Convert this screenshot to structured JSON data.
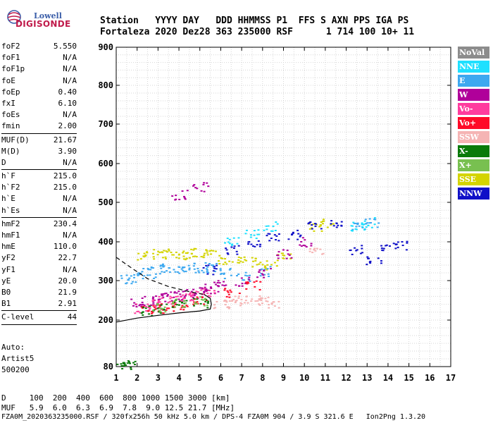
{
  "logo": {
    "line1": "Lowell",
    "line2": "DIGISONDE"
  },
  "header": {
    "keys": "Station   YYYY DAY   DDD HHMMSS P1  FFS S AXN PPS IGA PS",
    "values": "Fortaleza 2020 Dez28 363 235000 RSF      1 714 100 10+ 11"
  },
  "params": [
    {
      "k": "foF2",
      "v": "5.550"
    },
    {
      "k": "foF1",
      "v": "N/A"
    },
    {
      "k": "foF1p",
      "v": "N/A"
    },
    {
      "k": "foE",
      "v": "N/A"
    },
    {
      "k": "foEp",
      "v": "0.40"
    },
    {
      "k": "fxI",
      "v": "6.10"
    },
    {
      "k": "foEs",
      "v": "N/A"
    },
    {
      "k": "fmin",
      "v": "2.00"
    },
    {
      "sep": true
    },
    {
      "k": "MUF(D)",
      "v": "21.67"
    },
    {
      "k": "M(D)",
      "v": "3.90"
    },
    {
      "k": "D",
      "v": "N/A"
    },
    {
      "sep": true
    },
    {
      "k": "h`F",
      "v": "215.0"
    },
    {
      "k": "h`F2",
      "v": "215.0"
    },
    {
      "k": "h`E",
      "v": "N/A"
    },
    {
      "k": "h`Es",
      "v": "N/A"
    },
    {
      "sep": true
    },
    {
      "k": "hmF2",
      "v": "230.4"
    },
    {
      "k": "hmF1",
      "v": "N/A"
    },
    {
      "k": "hmE",
      "v": "110.0"
    },
    {
      "k": "yF2",
      "v": "22.7"
    },
    {
      "k": "yF1",
      "v": "N/A"
    },
    {
      "k": "yE",
      "v": "20.0"
    },
    {
      "k": "B0",
      "v": "21.9"
    },
    {
      "k": "B1",
      "v": "2.91"
    },
    {
      "sep": true
    },
    {
      "k": "C-level",
      "v": "44"
    },
    {
      "sep": true
    }
  ],
  "autoscaling": {
    "line1": "Auto:",
    "line2": "Artist5",
    "line3": "500200"
  },
  "legend": [
    {
      "label": "NoVal",
      "color": "#8c8c8c"
    },
    {
      "label": "NNE",
      "color": "#1fe0ff"
    },
    {
      "label": "E",
      "color": "#3da8f0"
    },
    {
      "label": "W",
      "color": "#b0009a"
    },
    {
      "label": "Vo-",
      "color": "#ff3c9e"
    },
    {
      "label": "Vo+",
      "color": "#ff0a28"
    },
    {
      "label": "SSW",
      "color": "#f5b4b4"
    },
    {
      "label": "X-",
      "color": "#0a7a0a"
    },
    {
      "label": "X+",
      "color": "#78c050"
    },
    {
      "label": "SSE",
      "color": "#d4d400"
    },
    {
      "label": "NNW",
      "color": "#1010c8"
    }
  ],
  "chart_data": {
    "type": "scatter",
    "xlabel": "",
    "ylabel": "",
    "xlim": [
      1,
      17
    ],
    "ylim": [
      80,
      900
    ],
    "xticks": [
      1,
      2,
      3,
      4,
      5,
      6,
      7,
      8,
      9,
      10,
      11,
      12,
      13,
      14,
      15,
      16,
      17
    ],
    "yticks": [
      80,
      200,
      300,
      400,
      500,
      600,
      700,
      800,
      900
    ],
    "grid": true,
    "series": [
      {
        "name": "SSE",
        "points": [
          [
            2.3,
            365
          ],
          [
            3,
            370
          ],
          [
            3.5,
            372
          ],
          [
            4,
            368
          ],
          [
            4.5,
            370
          ],
          [
            5,
            372
          ],
          [
            5.5,
            368
          ],
          [
            6.2,
            355
          ],
          [
            6.8,
            360
          ],
          [
            7.5,
            350
          ],
          [
            8.3,
            340
          ],
          [
            9,
            360
          ],
          [
            10.5,
            440
          ],
          [
            11,
            450
          ]
        ]
      },
      {
        "name": "E",
        "points": [
          [
            1.5,
            305
          ],
          [
            2,
            310
          ],
          [
            2.5,
            320
          ],
          [
            3,
            330
          ],
          [
            3.5,
            335
          ],
          [
            4,
            330
          ],
          [
            4.5,
            335
          ],
          [
            5,
            330
          ],
          [
            5.5,
            335
          ],
          [
            6.3,
            320
          ],
          [
            7,
            310
          ],
          [
            8,
            325
          ],
          [
            12.6,
            440
          ],
          [
            13.2,
            450
          ]
        ]
      },
      {
        "name": "W",
        "points": [
          [
            2,
            245
          ],
          [
            2.5,
            250
          ],
          [
            3,
            255
          ],
          [
            3.5,
            260
          ],
          [
            4,
            265
          ],
          [
            4.5,
            270
          ],
          [
            5,
            275
          ],
          [
            5.5,
            280
          ],
          [
            6,
            290
          ],
          [
            7,
            300
          ],
          [
            8,
            320
          ],
          [
            9,
            370
          ],
          [
            10,
            400
          ],
          [
            4,
            520
          ],
          [
            5,
            540
          ]
        ]
      },
      {
        "name": "Vo-",
        "points": [
          [
            2.2,
            230
          ],
          [
            2.8,
            240
          ],
          [
            3.3,
            250
          ],
          [
            3.8,
            255
          ],
          [
            4.3,
            258
          ],
          [
            4.8,
            262
          ],
          [
            5.3,
            270
          ]
        ]
      },
      {
        "name": "Vo+",
        "points": [
          [
            2.5,
            225
          ],
          [
            3,
            230
          ],
          [
            3.5,
            235
          ],
          [
            4,
            240
          ],
          [
            5,
            250
          ],
          [
            6.5,
            270
          ],
          [
            7.5,
            290
          ]
        ]
      },
      {
        "name": "SSW",
        "points": [
          [
            6,
            240
          ],
          [
            6.5,
            245
          ],
          [
            7,
            250
          ],
          [
            7.5,
            250
          ],
          [
            8,
            250
          ],
          [
            8.5,
            245
          ],
          [
            10.5,
            375
          ]
        ]
      },
      {
        "name": "X-",
        "points": [
          [
            1.3,
            86
          ],
          [
            1.5,
            86
          ],
          [
            2.5,
            225
          ],
          [
            3,
            230
          ],
          [
            4,
            240
          ],
          [
            5,
            245
          ]
        ]
      },
      {
        "name": "X+",
        "points": [
          [
            3,
            232
          ],
          [
            4,
            242
          ],
          [
            5,
            250
          ]
        ]
      },
      {
        "name": "NNE",
        "points": [
          [
            6.5,
            400
          ],
          [
            7.5,
            420
          ],
          [
            8.3,
            440
          ],
          [
            12.5,
            440
          ],
          [
            13,
            450
          ]
        ]
      },
      {
        "name": "NNW",
        "points": [
          [
            5.5,
            330
          ],
          [
            6.5,
            380
          ],
          [
            7.5,
            400
          ],
          [
            8.5,
            410
          ],
          [
            9.5,
            420
          ],
          [
            10.5,
            440
          ],
          [
            11.5,
            450
          ],
          [
            12.5,
            380
          ],
          [
            13.3,
            350
          ],
          [
            14,
            390
          ],
          [
            14.5,
            390
          ]
        ]
      }
    ],
    "traces": [
      {
        "name": "profile",
        "points": [
          [
            1,
            195
          ],
          [
            2,
            205
          ],
          [
            3,
            212
          ],
          [
            4,
            218
          ],
          [
            5,
            223
          ],
          [
            5.5,
            228
          ],
          [
            5.55,
            240
          ],
          [
            5.5,
            255
          ],
          [
            5.2,
            265
          ]
        ]
      },
      {
        "name": "profile-dashed",
        "points": [
          [
            1,
            360
          ],
          [
            1.8,
            330
          ],
          [
            2.5,
            305
          ],
          [
            3.5,
            285
          ],
          [
            4.5,
            272
          ],
          [
            5.2,
            265
          ]
        ]
      }
    ]
  },
  "bottom": {
    "line1": "D     100  200  400  600  800 1000 1500 3000 [km]",
    "line2": "MUF   5.9  6.0  6.3  6.9  7.8  9.0 12.5 21.7 [MHz]",
    "line3": "FZA0M_2020363235000.RSF / 320fx256h 50 kHz 5.0 km / DPS-4 FZA0M 904 / 3.9 S 321.6 E   Ion2Png 1.3.20"
  }
}
